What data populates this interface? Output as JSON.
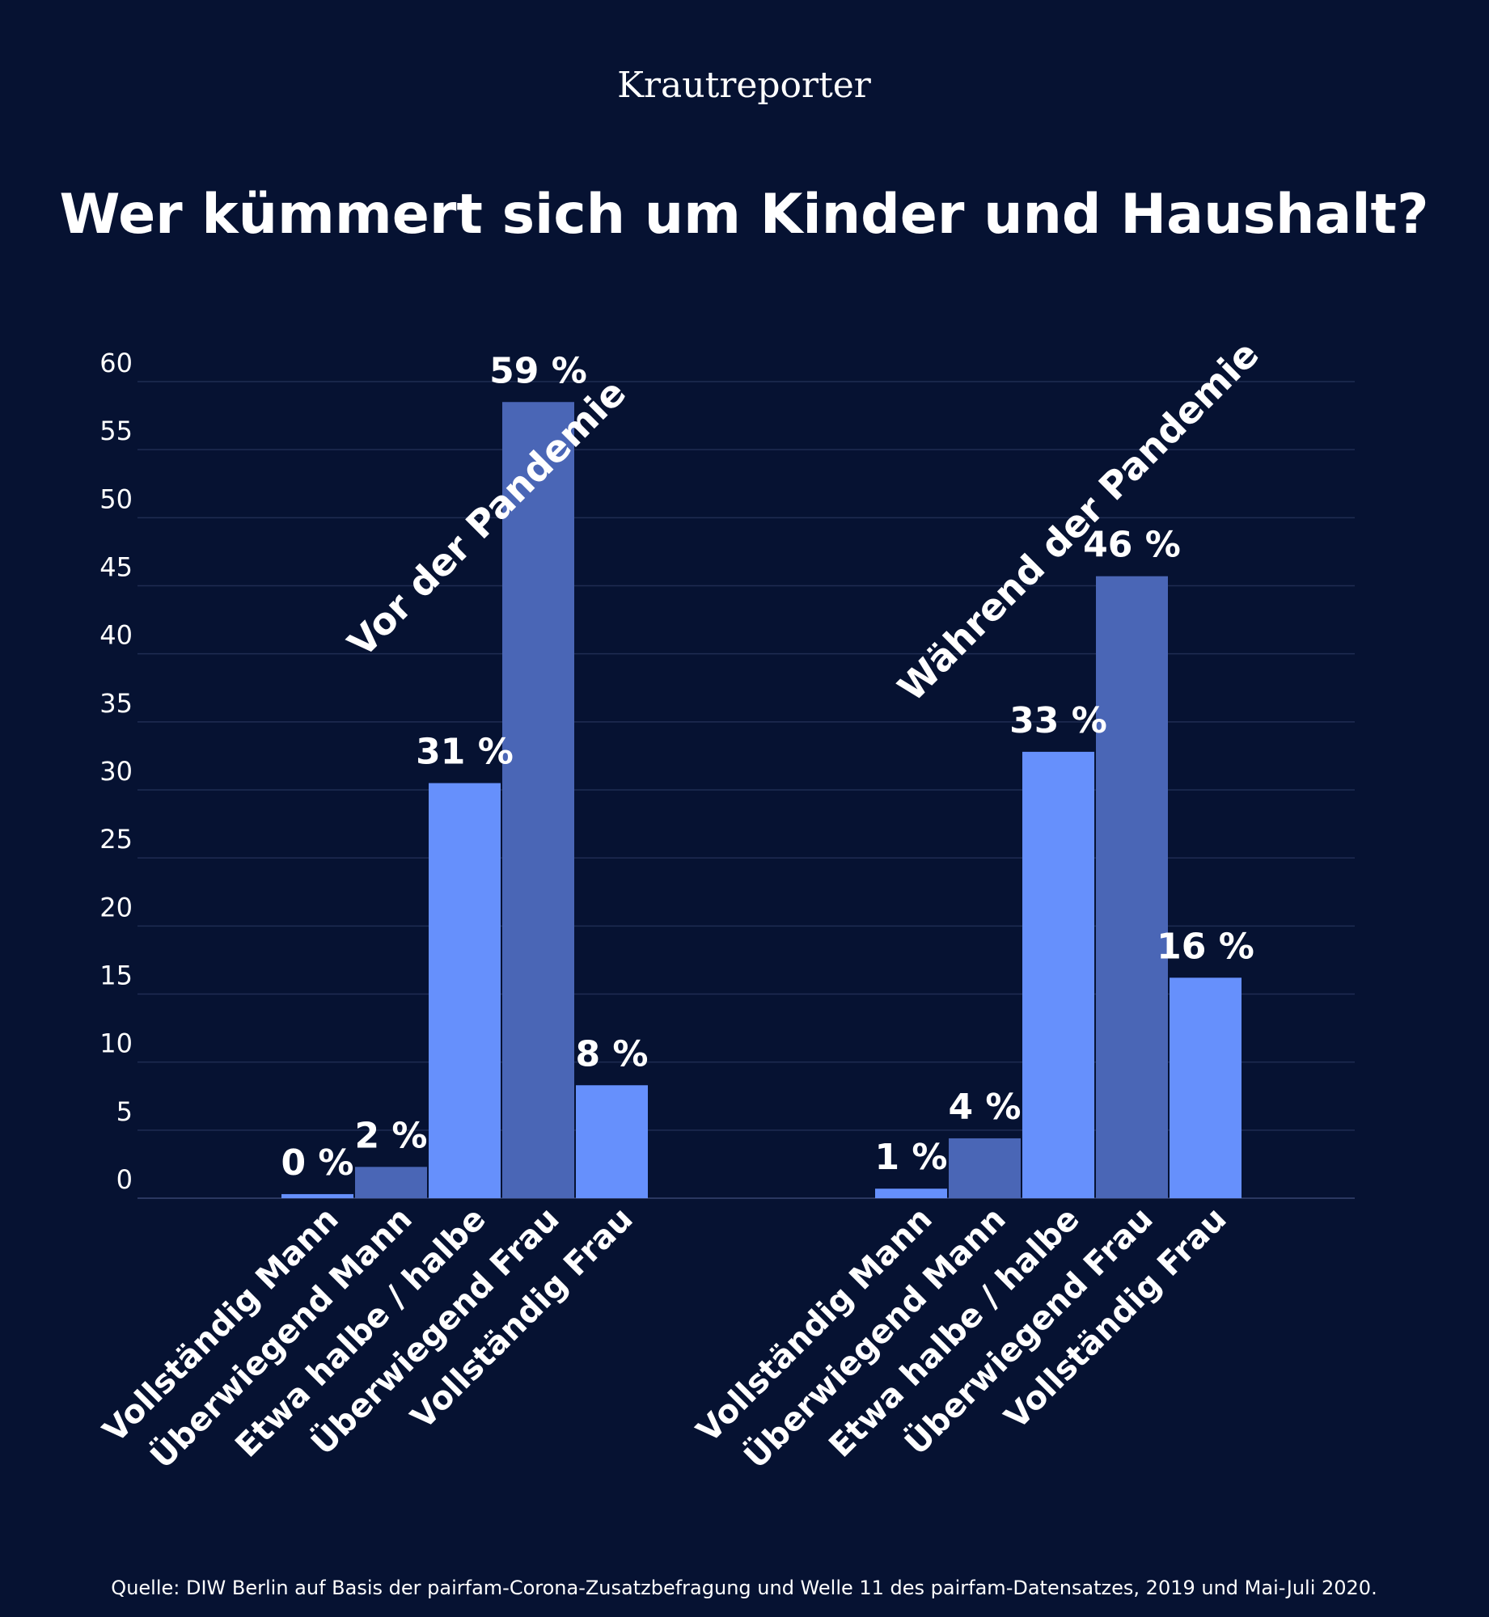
{
  "header": {
    "brand": "Krautreporter",
    "title": "Wer kümmert sich um Kinder und Haushalt?"
  },
  "footer": {
    "source": "Quelle: DIW Berlin auf Basis der pairfam-Corona-Zusatzbefragung und Welle 11 des pairfam-Datensatzes, 2019 und Mai-Juli 2020."
  },
  "chart_data": {
    "type": "bar",
    "ylim": [
      0,
      60
    ],
    "yticks": [
      0,
      5,
      10,
      15,
      20,
      25,
      30,
      35,
      40,
      45,
      50,
      55,
      60
    ],
    "grid": true,
    "categories": [
      "Vollständig Mann",
      "Überwiegend Mann",
      "Etwa halbe / halbe",
      "Überwiegend Frau",
      "Vollständig Frau"
    ],
    "groups": [
      {
        "label": "Vor der Pandemie",
        "values": [
          0.3,
          2.3,
          30.5,
          58.5,
          8.3
        ],
        "value_labels": [
          "0 %",
          "2 %",
          "31 %",
          "59 %",
          "8 %"
        ]
      },
      {
        "label": "Während der Pandemie",
        "values": [
          0.7,
          4.4,
          32.8,
          45.7,
          16.2
        ],
        "value_labels": [
          "1 %",
          "4 %",
          "33 %",
          "46 %",
          "16 %"
        ]
      }
    ],
    "colors": {
      "light": "#6690fc",
      "dark": "#4a66b6",
      "background": "#061232"
    }
  }
}
